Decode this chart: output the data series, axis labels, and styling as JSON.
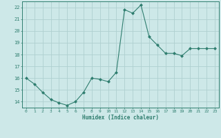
{
  "x": [
    0,
    1,
    2,
    3,
    4,
    5,
    6,
    7,
    8,
    9,
    10,
    11,
    12,
    13,
    14,
    15,
    16,
    17,
    18,
    19,
    20,
    21,
    22,
    23
  ],
  "y": [
    16.0,
    15.5,
    14.8,
    14.2,
    13.9,
    13.7,
    14.0,
    14.8,
    16.0,
    15.9,
    15.7,
    16.5,
    21.8,
    21.5,
    22.2,
    19.5,
    18.8,
    18.1,
    18.1,
    17.9,
    18.5,
    18.5,
    18.5,
    18.5
  ],
  "xlabel": "Humidex (Indice chaleur)",
  "ylim": [
    13.5,
    22.5
  ],
  "xlim": [
    -0.5,
    23.5
  ],
  "yticks": [
    14,
    15,
    16,
    17,
    18,
    19,
    20,
    21,
    22
  ],
  "xticks": [
    0,
    1,
    2,
    3,
    4,
    5,
    6,
    7,
    8,
    9,
    10,
    11,
    12,
    13,
    14,
    15,
    16,
    17,
    18,
    19,
    20,
    21,
    22,
    23
  ],
  "line_color": "#2e7d6e",
  "marker_color": "#2e7d6e",
  "bg_color": "#cde8e8",
  "grid_color": "#afd0d0",
  "font_color": "#2e7d6e"
}
